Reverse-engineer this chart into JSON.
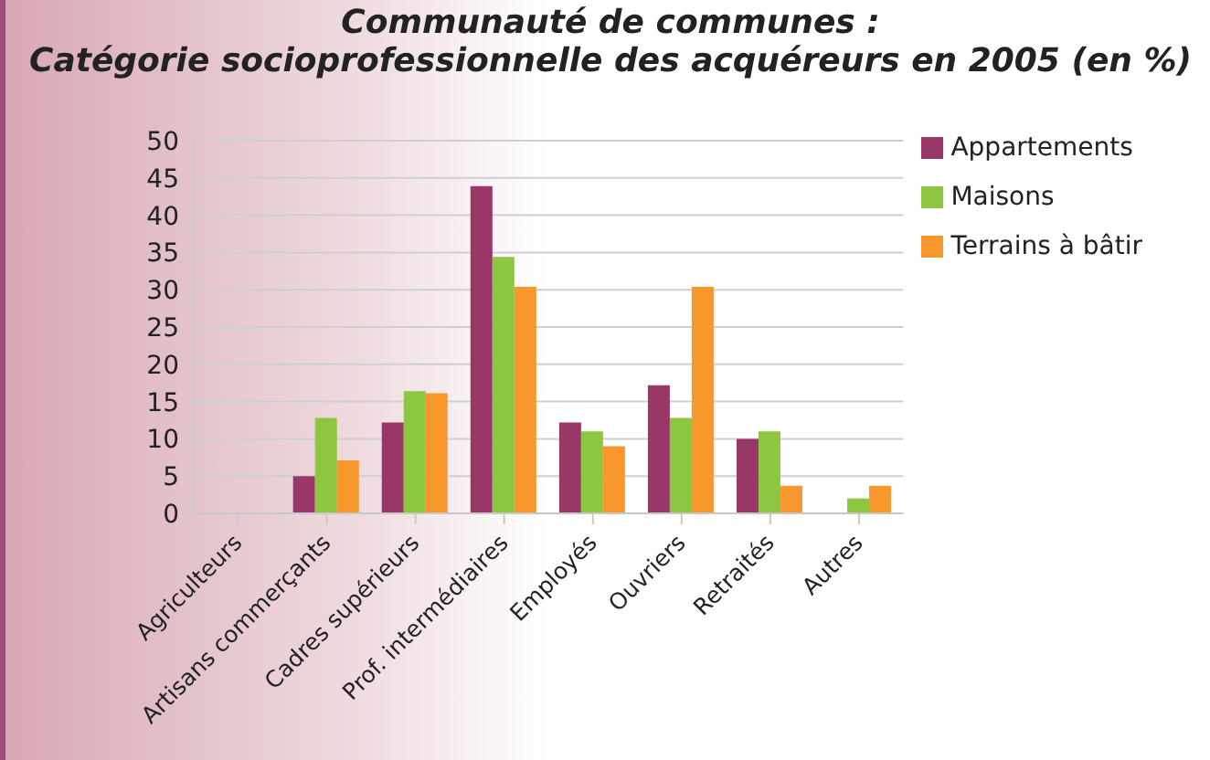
{
  "chart_data": {
    "type": "bar",
    "title": "Communauté de communes :",
    "subtitle": "Catégorie socioprofessionnelle des acquéreurs en 2005 (en %)",
    "categories": [
      "Agriculteurs",
      "Artisans commerçants",
      "Cadres supérieurs",
      "Prof. intermédiaires",
      "Employés",
      "Ouvriers",
      "Retraités",
      "Autres"
    ],
    "series": [
      {
        "name": "Appartements",
        "color": "#993768",
        "values": [
          0,
          5,
          12.2,
          43.9,
          12.2,
          17.2,
          10,
          0
        ]
      },
      {
        "name": "Maisons",
        "color": "#8dc63f",
        "values": [
          0,
          12.8,
          16.4,
          34.4,
          11,
          12.8,
          11,
          2
        ]
      },
      {
        "name": "Terrains à bâtir",
        "color": "#f7972c",
        "values": [
          0,
          7.1,
          16.1,
          30.4,
          9,
          30.4,
          3.7,
          3.7
        ]
      }
    ],
    "ylim": [
      0,
      50
    ],
    "yticks": [
      0,
      5,
      10,
      15,
      20,
      25,
      30,
      35,
      40,
      45,
      50
    ],
    "grid": "y",
    "legend": "top right"
  }
}
